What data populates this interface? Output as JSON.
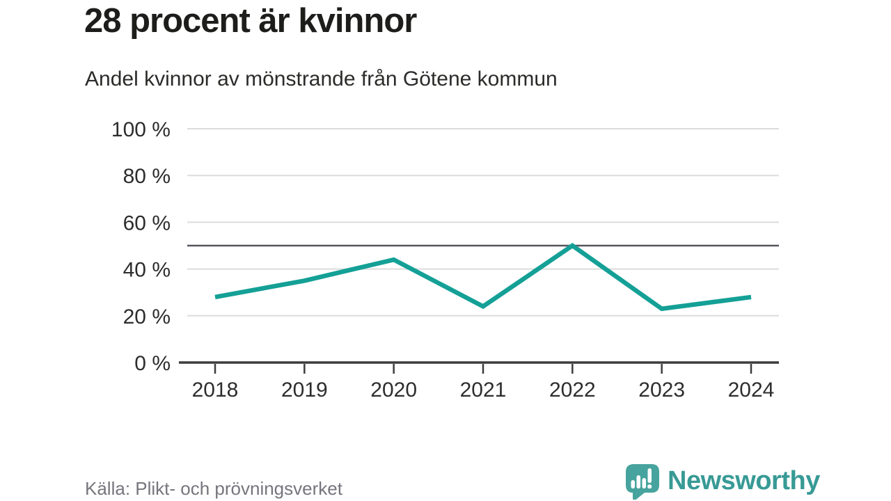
{
  "header": {
    "title": "28 procent är kvinnor",
    "subtitle": "Andel kvinnor av mönstrande från Götene kommun"
  },
  "chart_data": {
    "type": "line",
    "title": "28 procent är kvinnor",
    "subtitle": "Andel kvinnor av mönstrande från Götene kommun",
    "categories": [
      "2018",
      "2019",
      "2020",
      "2021",
      "2022",
      "2023",
      "2024"
    ],
    "series": [
      {
        "name": "Andel kvinnor av mönstrande",
        "values": [
          28,
          35,
          44,
          24,
          50,
          23,
          28
        ]
      }
    ],
    "unit": "%",
    "ylim": [
      0,
      100
    ],
    "y_ticks": [
      {
        "label": "0 %",
        "value": 0
      },
      {
        "label": "20 %",
        "value": 20
      },
      {
        "label": "40 %",
        "value": 40
      },
      {
        "label": "60 %",
        "value": 60
      },
      {
        "label": "80 %",
        "value": 80
      },
      {
        "label": "100 %",
        "value": 100
      }
    ],
    "reference_line": {
      "value": 50
    },
    "grid": true,
    "legend": "none",
    "colors": {
      "line": "#14a096",
      "reference": "#55555f",
      "grid": "#dcdcdc",
      "axis": "#3c3c3c",
      "tick_label": "#2d2d2d"
    }
  },
  "footer": {
    "source": "Källa: Plikt- och prövningsverket",
    "brand": "Newsworthy",
    "brand_color": "#389a95",
    "logo_color": "#47a39d",
    "logo_icon": "newsworthy-chart-bubble-icon"
  }
}
